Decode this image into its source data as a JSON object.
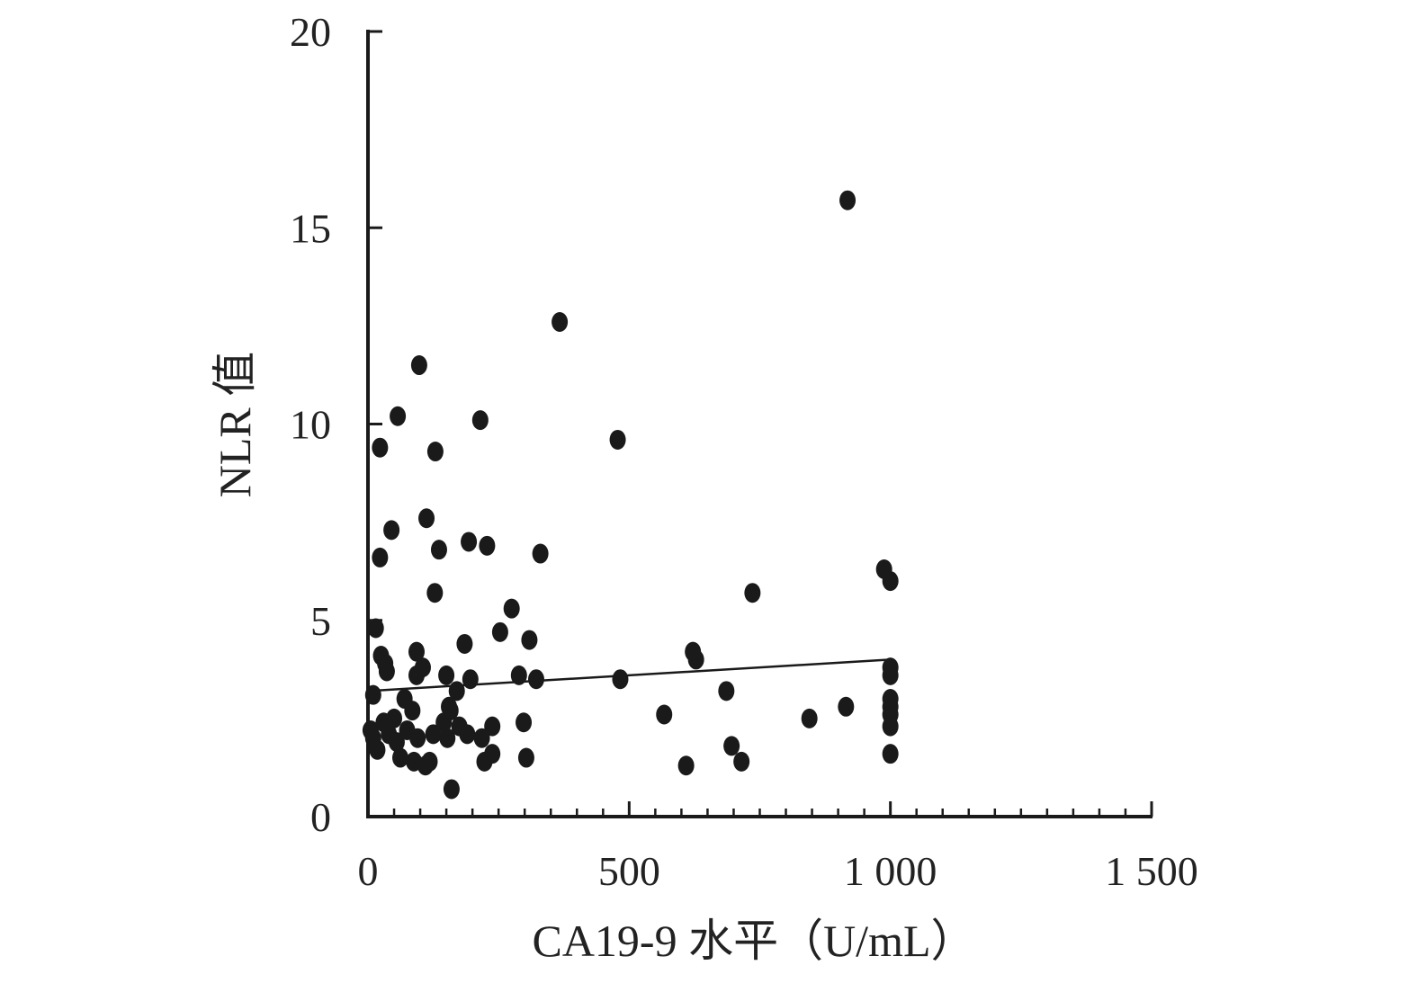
{
  "chart_data": {
    "type": "scatter",
    "title": "",
    "xlabel": "CA19-9 水平（U/mL）",
    "ylabel": "NLR 值",
    "xlim": [
      0,
      1500
    ],
    "ylim": [
      0,
      20
    ],
    "x_ticks": [
      0,
      500,
      1000,
      1500
    ],
    "x_tick_labels": [
      "0",
      "500",
      "1 000",
      "1 500"
    ],
    "y_ticks": [
      0,
      5,
      10,
      15,
      20
    ],
    "y_tick_labels": [
      "0",
      "5",
      "10",
      "15",
      "20"
    ],
    "x_minor_step": 50,
    "y_minor_step": 5,
    "grid": false,
    "legend": "none",
    "colors": {
      "points": "#1a1a1a",
      "axis": "#1a1a1a",
      "trendline": "#1a1a1a"
    },
    "series": [
      {
        "type": "scatter",
        "points": [
          [
            918,
            15.7
          ],
          [
            367,
            12.6
          ],
          [
            98,
            11.5
          ],
          [
            57,
            10.2
          ],
          [
            215,
            10.1
          ],
          [
            478,
            9.6
          ],
          [
            23,
            9.4
          ],
          [
            129,
            9.3
          ],
          [
            45,
            7.3
          ],
          [
            112,
            7.6
          ],
          [
            193,
            7.0
          ],
          [
            228,
            6.9
          ],
          [
            136,
            6.8
          ],
          [
            330,
            6.7
          ],
          [
            23,
            6.6
          ],
          [
            988,
            6.3
          ],
          [
            1000,
            6.0
          ],
          [
            128,
            5.7
          ],
          [
            736,
            5.7
          ],
          [
            275,
            5.3
          ],
          [
            15,
            4.8
          ],
          [
            253,
            4.7
          ],
          [
            185,
            4.4
          ],
          [
            309,
            4.5
          ],
          [
            93,
            4.2
          ],
          [
            622,
            4.2
          ],
          [
            628,
            4.0
          ],
          [
            25,
            4.1
          ],
          [
            33,
            3.9
          ],
          [
            36,
            3.7
          ],
          [
            105,
            3.8
          ],
          [
            93,
            3.6
          ],
          [
            150,
            3.6
          ],
          [
            289,
            3.6
          ],
          [
            196,
            3.5
          ],
          [
            322,
            3.5
          ],
          [
            483,
            3.5
          ],
          [
            1000,
            3.8
          ],
          [
            1000,
            3.6
          ],
          [
            10,
            3.1
          ],
          [
            170,
            3.2
          ],
          [
            686,
            3.2
          ],
          [
            155,
            2.8
          ],
          [
            158,
            2.7
          ],
          [
            70,
            3.0
          ],
          [
            50,
            2.5
          ],
          [
            85,
            2.7
          ],
          [
            567,
            2.6
          ],
          [
            845,
            2.5
          ],
          [
            915,
            2.8
          ],
          [
            1000,
            3.0
          ],
          [
            1000,
            2.8
          ],
          [
            1000,
            2.6
          ],
          [
            1000,
            2.3
          ],
          [
            5,
            2.2
          ],
          [
            10,
            2.0
          ],
          [
            18,
            1.7
          ],
          [
            30,
            2.4
          ],
          [
            40,
            2.1
          ],
          [
            55,
            1.9
          ],
          [
            62,
            1.5
          ],
          [
            75,
            2.2
          ],
          [
            88,
            1.4
          ],
          [
            95,
            2.0
          ],
          [
            110,
            1.3
          ],
          [
            118,
            1.4
          ],
          [
            125,
            2.1
          ],
          [
            145,
            2.4
          ],
          [
            152,
            2.0
          ],
          [
            175,
            2.3
          ],
          [
            190,
            2.1
          ],
          [
            218,
            2.0
          ],
          [
            223,
            1.4
          ],
          [
            238,
            2.3
          ],
          [
            238,
            1.6
          ],
          [
            298,
            2.4
          ],
          [
            303,
            1.5
          ],
          [
            696,
            1.8
          ],
          [
            715,
            1.4
          ],
          [
            609,
            1.3
          ],
          [
            1000,
            1.6
          ],
          [
            160,
            0.7
          ]
        ]
      }
    ],
    "trendline": {
      "x": [
        0,
        1000
      ],
      "y": [
        3.2,
        4.0
      ]
    }
  }
}
